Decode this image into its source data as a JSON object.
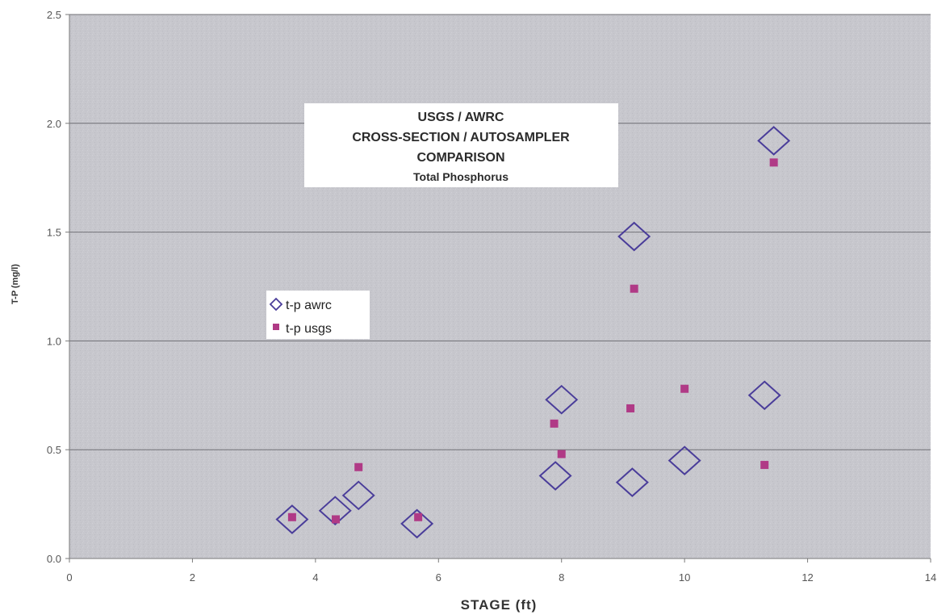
{
  "chart_data": {
    "type": "scatter",
    "title_lines": [
      "USGS / AWRC",
      "CROSS-SECTION / AUTOSAMPLER",
      "COMPARISON",
      "Total Phosphorus"
    ],
    "xlabel": "STAGE (ft)",
    "ylabel": "T-P (mg/l)",
    "xlim": [
      0,
      14
    ],
    "ylim": [
      0,
      2.5
    ],
    "x_ticks": [
      "0",
      "2",
      "4",
      "6",
      "8",
      "10",
      "12",
      "14"
    ],
    "y_ticks": [
      "0.0",
      "0.5",
      "1.0",
      "1.5",
      "2.0",
      "2.5"
    ],
    "grid": "horizontal",
    "legend_position": "left-middle",
    "plot_background": "#c6c6cc",
    "series": [
      {
        "name": "t-p awrc",
        "marker": "open-diamond",
        "color": "#4a3d9a",
        "points": [
          {
            "x": 3.62,
            "y": 0.18
          },
          {
            "x": 4.32,
            "y": 0.22
          },
          {
            "x": 4.7,
            "y": 0.29
          },
          {
            "x": 5.65,
            "y": 0.16
          },
          {
            "x": 7.9,
            "y": 0.38
          },
          {
            "x": 8.0,
            "y": 0.73
          },
          {
            "x": 9.15,
            "y": 0.35
          },
          {
            "x": 9.18,
            "y": 1.48
          },
          {
            "x": 10.0,
            "y": 0.45
          },
          {
            "x": 11.3,
            "y": 0.75
          },
          {
            "x": 11.45,
            "y": 1.92
          }
        ]
      },
      {
        "name": "t-p usgs",
        "marker": "filled-square",
        "color": "#b03a86",
        "points": [
          {
            "x": 3.62,
            "y": 0.19
          },
          {
            "x": 4.33,
            "y": 0.18
          },
          {
            "x": 4.7,
            "y": 0.42
          },
          {
            "x": 5.67,
            "y": 0.19
          },
          {
            "x": 7.88,
            "y": 0.62
          },
          {
            "x": 8.0,
            "y": 0.48
          },
          {
            "x": 9.12,
            "y": 0.69
          },
          {
            "x": 9.18,
            "y": 1.24
          },
          {
            "x": 10.0,
            "y": 0.78
          },
          {
            "x": 11.3,
            "y": 0.43
          },
          {
            "x": 11.45,
            "y": 1.82
          }
        ]
      }
    ]
  }
}
